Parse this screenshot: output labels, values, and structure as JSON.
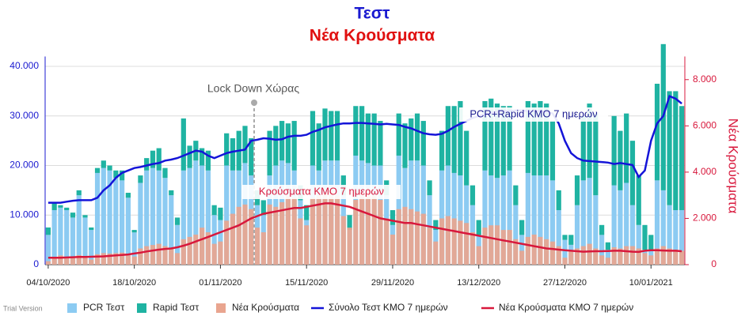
{
  "chart_data": {
    "type": "bar",
    "title": "Τεστ",
    "subtitle": "Νέα Κρούσματα",
    "y2_label": "Νέα Κρούσματα",
    "watermark": "Trial Version",
    "annotations": [
      "PCR+Rapid ΚΜΟ 7 ημερών",
      "Κρούσματα ΚΜΟ 7 ημερών",
      "Lock Down Χώρας"
    ],
    "categories": [
      "04/10/2020",
      null,
      null,
      null,
      null,
      null,
      null,
      null,
      null,
      null,
      null,
      null,
      null,
      null,
      "18/10/2020",
      null,
      null,
      null,
      null,
      null,
      null,
      null,
      null,
      null,
      null,
      null,
      null,
      null,
      "01/11/2020",
      null,
      null,
      null,
      null,
      null,
      null,
      null,
      null,
      null,
      null,
      null,
      null,
      null,
      "15/11/2020",
      null,
      null,
      null,
      null,
      null,
      null,
      null,
      null,
      null,
      null,
      null,
      null,
      null,
      "29/11/2020",
      null,
      null,
      null,
      null,
      null,
      null,
      null,
      null,
      null,
      null,
      null,
      null,
      null,
      "13/12/2020",
      null,
      null,
      null,
      null,
      null,
      null,
      null,
      null,
      null,
      null,
      null,
      null,
      null,
      "27/12/2020",
      null,
      null,
      null,
      null,
      null,
      null,
      null,
      null,
      null,
      null,
      null,
      null,
      null,
      "10/01/2021",
      null,
      null,
      null,
      null,
      null
    ],
    "ylim": [
      0,
      42000
    ],
    "yticks": [
      0,
      {
        "value": 10000,
        "label": "10.000"
      },
      {
        "value": 20000,
        "label": "20.000"
      },
      {
        "value": 30000,
        "label": "30.000"
      },
      {
        "value": 40000,
        "label": "40.000"
      }
    ],
    "y2lim": [
      0,
      9000
    ],
    "y2ticks": [
      0,
      {
        "value": 2000,
        "label": "2.000"
      },
      {
        "value": 4000,
        "label": "4.000"
      },
      {
        "value": 6000,
        "label": "6.000"
      },
      {
        "value": 8000,
        "label": "8.000"
      }
    ],
    "grid": true,
    "series": [
      {
        "name": "PCR Τεστ",
        "type": "bar",
        "stack": "tests",
        "color": "#8ccbf2",
        "values": [
          6000,
          11000,
          11500,
          11000,
          9500,
          14000,
          9500,
          7000,
          18500,
          19500,
          19000,
          17500,
          17000,
          13500,
          6500,
          16500,
          19000,
          19500,
          19000,
          17500,
          14000,
          8000,
          19000,
          19500,
          21000,
          20000,
          19000,
          10000,
          9000,
          20000,
          19000,
          19000,
          20500,
          18000,
          12000,
          10000,
          18000,
          20000,
          21000,
          20500,
          19000,
          13000,
          9000,
          20000,
          19000,
          21000,
          21000,
          21000,
          14000,
          7000,
          22000,
          21000,
          20500,
          20000,
          20000,
          14000,
          8000,
          22000,
          19500,
          21000,
          21000,
          20000,
          14000,
          7000,
          19000,
          20000,
          18500,
          18000,
          16000,
          12000,
          6000,
          19000,
          18000,
          17500,
          18000,
          19000,
          12000,
          6000,
          18500,
          18000,
          18000,
          18000,
          17000,
          11000,
          5000,
          4000,
          12000,
          17000,
          17500,
          14000,
          6000,
          3000,
          16000,
          15000,
          16500,
          12000,
          8000,
          3000,
          3000,
          17000,
          15000,
          12000,
          11000,
          11000
        ]
      },
      {
        "name": "Rapid Τεστ",
        "type": "bar",
        "stack": "tests",
        "color": "#1fb3a2",
        "values": [
          1500,
          1500,
          500,
          500,
          1000,
          1000,
          500,
          500,
          1000,
          1500,
          1000,
          1500,
          2000,
          1000,
          500,
          1500,
          2500,
          3500,
          4500,
          2000,
          1000,
          1500,
          10500,
          4500,
          4000,
          3500,
          4000,
          2000,
          2500,
          6500,
          6500,
          8000,
          7500,
          7500,
          3000,
          3000,
          9000,
          8000,
          8000,
          8000,
          10000,
          3000,
          3000,
          11000,
          9500,
          10500,
          10000,
          10000,
          4000,
          3000,
          10000,
          11000,
          10000,
          10500,
          9000,
          3000,
          3000,
          8500,
          9000,
          8500,
          9500,
          9000,
          3000,
          2000,
          8000,
          12000,
          13500,
          15000,
          11000,
          4000,
          3000,
          14000,
          15500,
          15000,
          14000,
          13000,
          4000,
          3000,
          14500,
          14500,
          15000,
          14500,
          12000,
          4000,
          1000,
          2000,
          6000,
          13000,
          15000,
          16500,
          2000,
          1500,
          14000,
          12000,
          14000,
          13000,
          10000,
          5000,
          3000,
          19500,
          29500,
          23000,
          24000,
          21000
        ]
      },
      {
        "name": "Νέα Κρούσματα",
        "type": "bar",
        "axis": "y2",
        "color": "#e9a58f",
        "values": [
          150,
          300,
          400,
          330,
          350,
          410,
          290,
          220,
          450,
          500,
          480,
          500,
          520,
          400,
          350,
          700,
          800,
          850,
          900,
          800,
          700,
          500,
          1100,
          1200,
          1300,
          1600,
          1400,
          900,
          1000,
          1900,
          2200,
          2500,
          2600,
          2400,
          1600,
          1400,
          2600,
          2500,
          2700,
          3000,
          2900,
          2000,
          1700,
          2900,
          3000,
          3100,
          3200,
          3000,
          2100,
          1600,
          2800,
          3100,
          3300,
          3000,
          2800,
          2000,
          1300,
          2400,
          2500,
          2400,
          2300,
          2200,
          1600,
          1000,
          2000,
          2100,
          2000,
          1900,
          1800,
          1400,
          800,
          1600,
          1700,
          1700,
          1500,
          1500,
          1100,
          600,
          1200,
          1300,
          1200,
          1100,
          1000,
          800,
          300,
          600,
          700,
          800,
          900,
          700,
          400,
          300,
          750,
          700,
          800,
          800,
          700,
          500,
          400,
          700,
          800,
          700,
          650,
          600
        ]
      },
      {
        "name": "Σύνολο Τεστ ΚΜΟ 7 ημερών",
        "type": "line",
        "color": "#1414d8",
        "values": [
          12500,
          12500,
          12500,
          12700,
          12900,
          13000,
          13000,
          13000,
          13500,
          15000,
          16000,
          17500,
          18500,
          19000,
          19500,
          19700,
          20000,
          20300,
          20500,
          21000,
          21200,
          21500,
          22000,
          22500,
          23000,
          22800,
          22000,
          21500,
          22000,
          22500,
          22800,
          23000,
          23200,
          25000,
          25200,
          25500,
          25400,
          25200,
          25300,
          25800,
          26000,
          26000,
          26200,
          26800,
          27200,
          27700,
          28000,
          28300,
          28500,
          28500,
          28600,
          28600,
          28500,
          28400,
          28300,
          28400,
          28300,
          28200,
          27800,
          27500,
          27000,
          26500,
          26300,
          26200,
          26400,
          27000,
          27800,
          28400,
          29000,
          29600,
          30000,
          30300,
          30600,
          30800,
          31000,
          31000,
          31100,
          31100,
          31000,
          31000,
          31000,
          30800,
          30500,
          28500,
          25000,
          22500,
          21500,
          21000,
          20900,
          20800,
          20700,
          20600,
          20300,
          20500,
          20300,
          20100,
          17700,
          19000,
          25000,
          28500,
          30000,
          34000,
          33500,
          32500
        ]
      },
      {
        "name": "Νέα Κρούσματα ΚΜΟ 7 ημερών",
        "type": "line",
        "axis": "y2",
        "color": "#d8183c",
        "values": [
          300,
          300,
          300,
          310,
          320,
          330,
          330,
          340,
          350,
          360,
          380,
          400,
          420,
          440,
          480,
          520,
          570,
          610,
          650,
          680,
          700,
          750,
          820,
          900,
          1000,
          1100,
          1200,
          1300,
          1400,
          1500,
          1600,
          1700,
          1850,
          2000,
          2100,
          2200,
          2250,
          2300,
          2350,
          2400,
          2450,
          2450,
          2500,
          2550,
          2600,
          2650,
          2650,
          2600,
          2550,
          2500,
          2400,
          2300,
          2200,
          2100,
          2000,
          1950,
          1900,
          1850,
          1800,
          1800,
          1750,
          1700,
          1650,
          1600,
          1550,
          1500,
          1450,
          1400,
          1350,
          1300,
          1250,
          1200,
          1150,
          1100,
          1050,
          1000,
          950,
          900,
          850,
          800,
          750,
          700,
          680,
          650,
          620,
          600,
          580,
          560,
          570,
          580,
          580,
          590,
          600,
          600,
          580,
          560,
          550,
          600,
          620,
          620,
          610,
          600,
          600,
          580
        ]
      }
    ]
  }
}
